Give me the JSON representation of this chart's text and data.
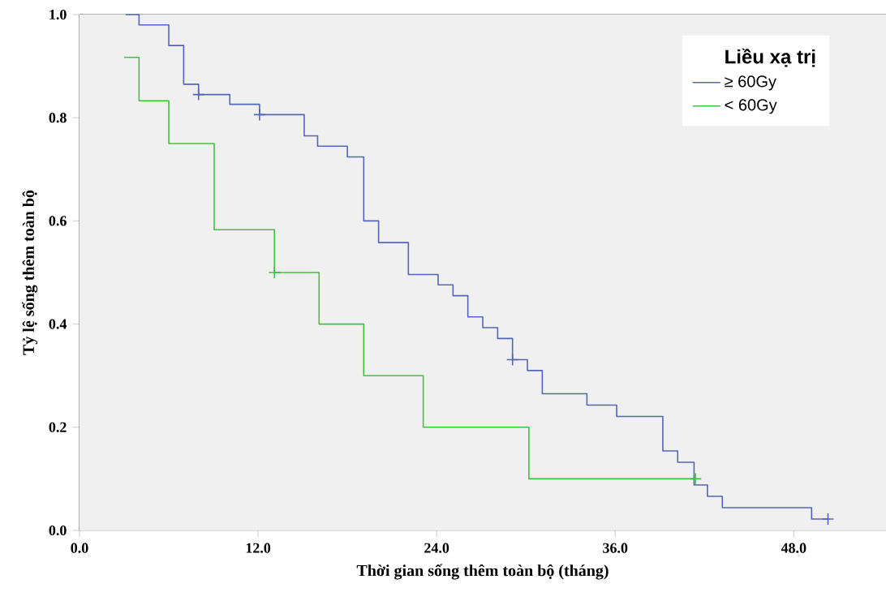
{
  "chart_data": {
    "type": "step",
    "xlabel": "Thời gian sống thêm toàn bộ (tháng)",
    "ylabel": "Tỷ lệ sống thêm toàn bộ",
    "legend_title": "Liều xạ trị",
    "xlim": [
      0,
      54.2
    ],
    "ylim": [
      0,
      1.0
    ],
    "xticks": [
      {
        "value": 0,
        "label": "0.0"
      },
      {
        "value": 12,
        "label": "12.0"
      },
      {
        "value": 24,
        "label": "24.0"
      },
      {
        "value": 36,
        "label": "36.0"
      },
      {
        "value": 48,
        "label": "48.0"
      }
    ],
    "yticks": [
      {
        "value": 0,
        "label": "0.0"
      },
      {
        "value": 0.2,
        "label": "0.2"
      },
      {
        "value": 0.4,
        "label": "0.4"
      },
      {
        "value": 0.6,
        "label": "0.6"
      },
      {
        "value": 0.8,
        "label": "0.8"
      },
      {
        "value": 1.0,
        "label": "1.0"
      }
    ],
    "grid": false,
    "legend": "top right",
    "series": [
      {
        "name": "≥ 60Gy",
        "color": "#5566b8",
        "x": [
          3.1,
          4.0,
          6.0,
          7.0,
          8.0,
          10.1,
          12.1,
          15.1,
          16.0,
          18.0,
          19.1,
          20.1,
          22.1,
          24.1,
          25.1,
          26.1,
          27.1,
          28.1,
          29.1,
          30.1,
          31.1,
          34.1,
          36.1,
          39.2,
          40.2,
          41.3,
          42.2,
          43.2,
          49.2,
          50.3
        ],
        "values": [
          1.0,
          0.98,
          0.94,
          0.865,
          0.845,
          0.826,
          0.806,
          0.765,
          0.745,
          0.724,
          0.6,
          0.558,
          0.496,
          0.476,
          0.455,
          0.414,
          0.393,
          0.372,
          0.331,
          0.31,
          0.265,
          0.243,
          0.221,
          0.154,
          0.132,
          0.088,
          0.066,
          0.044,
          0.022,
          0.022
        ]
      },
      {
        "name": "< 60Gy",
        "color": "#44c044",
        "x": [
          3.0,
          4.0,
          6.0,
          9.05,
          13.1,
          16.1,
          19.1,
          23.1,
          30.2,
          41.4
        ],
        "values": [
          0.917,
          0.833,
          0.75,
          0.583,
          0.5,
          0.4,
          0.3,
          0.2,
          0.1,
          0.1
        ]
      },
      {
        "type": "scatter",
        "marker": "cross",
        "color": "#5566b8",
        "x": [
          8.0,
          12.1,
          29.1,
          50.3
        ],
        "values": [
          0.845,
          0.806,
          0.331,
          0.022
        ]
      },
      {
        "type": "scatter",
        "marker": "cross",
        "color": "#44c044",
        "x": [
          13.1,
          41.4
        ],
        "values": [
          0.5,
          0.1
        ]
      }
    ]
  }
}
